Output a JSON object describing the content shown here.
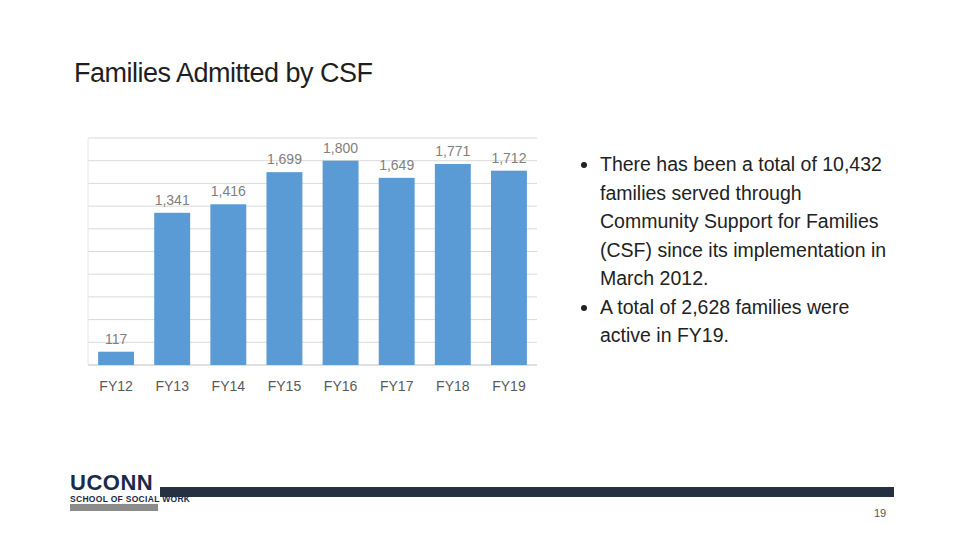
{
  "chart_data": {
    "type": "bar",
    "title": "Families Admitted by CSF",
    "categories": [
      "FY12",
      "FY13",
      "FY14",
      "FY15",
      "FY16",
      "FY17",
      "FY18",
      "FY19"
    ],
    "values": [
      117,
      1341,
      1416,
      1699,
      1800,
      1649,
      1771,
      1712
    ],
    "value_labels": [
      "117",
      "1,341",
      "1,416",
      "1,699",
      "1,800",
      "1,649",
      "1,771",
      "1,712"
    ],
    "color": "#5b9bd5",
    "ylim": [
      0,
      2000
    ],
    "yticks": [
      0,
      200,
      400,
      600,
      800,
      1000,
      1200,
      1400,
      1600,
      1800,
      2000
    ],
    "grid": true,
    "data_labels": true,
    "tick_labels": "x"
  },
  "bullets": [
    "There has been a total of 10,432 families served through Community Support for Families (CSF) since its implementation in March 2012.",
    "A total of 2,628 families were active in FY19."
  ],
  "footer": {
    "logo": "UCONN",
    "logo_subtitle": "SCHOOL OF SOCIAL WORK",
    "page_number": "19"
  }
}
